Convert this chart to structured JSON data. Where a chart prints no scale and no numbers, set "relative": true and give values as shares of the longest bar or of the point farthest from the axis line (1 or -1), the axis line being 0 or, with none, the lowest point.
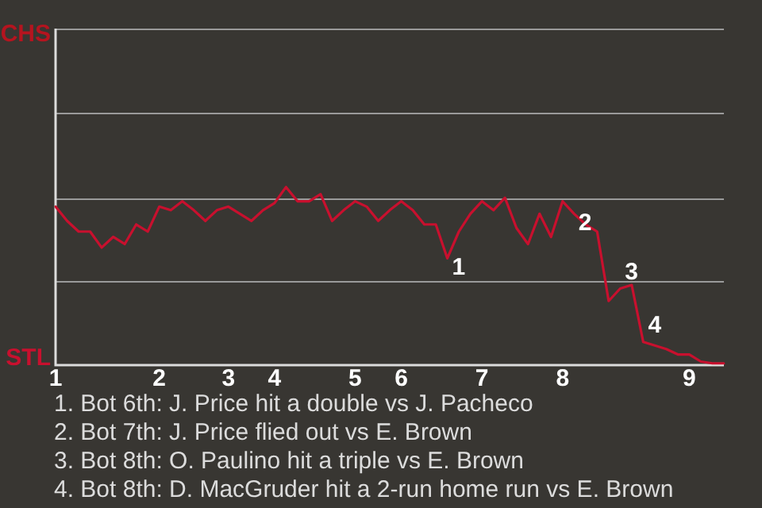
{
  "chart_data": {
    "type": "line",
    "relative": true,
    "categories": [
      "1",
      null,
      null,
      null,
      null,
      null,
      null,
      null,
      null,
      "2",
      null,
      null,
      null,
      null,
      null,
      "3",
      null,
      null,
      null,
      "4",
      null,
      null,
      null,
      null,
      null,
      null,
      "5",
      null,
      null,
      null,
      "6",
      null,
      null,
      null,
      null,
      null,
      null,
      "7",
      null,
      null,
      null,
      null,
      null,
      null,
      "8",
      null,
      null,
      null,
      null,
      null,
      null,
      null,
      null,
      null,
      null,
      "9",
      null,
      null,
      null
    ],
    "series": [
      {
        "color": "#c8102e",
        "values": [
          0.89,
          0.81,
          0.75,
          0.75,
          0.66,
          0.72,
          0.68,
          0.79,
          0.75,
          0.89,
          0.87,
          0.92,
          0.87,
          0.81,
          0.87,
          0.89,
          0.85,
          0.81,
          0.87,
          0.91,
          1,
          0.92,
          0.92,
          0.96,
          0.81,
          0.87,
          0.92,
          0.89,
          0.81,
          0.87,
          0.92,
          0.87,
          0.79,
          0.79,
          0.6,
          0.75,
          0.85,
          0.92,
          0.87,
          0.94,
          0.77,
          0.68,
          0.85,
          0.72,
          0.92,
          0.85,
          0.79,
          0.75,
          0.36,
          0.43,
          0.45,
          0.13,
          0.11,
          0.09,
          0.06,
          0.06,
          0.02,
          0.01,
          0.01
        ]
      }
    ],
    "ref_lines": [
      {
        "axis": "y",
        "value": 0.47,
        "color": "#9a9a9a"
      },
      {
        "axis": "y",
        "value": 0.94,
        "color": "#9a9a9a"
      },
      {
        "axis": "y",
        "value": 1.42,
        "color": "#9a9a9a"
      },
      {
        "axis": "y",
        "value": 1.89,
        "color": "#9a9a9a"
      }
    ],
    "legend": false,
    "marker": "none",
    "line_style": "solid",
    "annotations": [
      "1",
      "2",
      "3",
      "4",
      "CHS",
      "STL",
      "1. Bot 6th: J. Price hit a double vs J. Pacheco",
      "2. Bot 7th: J. Price flied out vs E. Brown",
      "3. Bot 8th: O. Paulino hit a triple vs E. Brown",
      "4. Bot 8th: D. MacGruder hit a 2-run home run vs E. Brown"
    ]
  }
}
